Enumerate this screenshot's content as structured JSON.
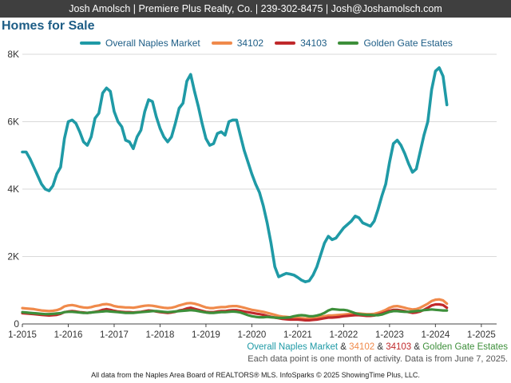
{
  "header": {
    "contact": "Josh Amolsch | Premiere Plus Realty, Co. | 239-302-8475 | Josh@Joshamolsch.com"
  },
  "colors": {
    "header_bg": "#3f3f3f",
    "title": "#1d5d86",
    "overall": "#1f9aa6",
    "z34102": "#f08a4b",
    "z34103": "#c0292b",
    "golden_gate": "#3d8f3a",
    "grid": "#d9d9d9",
    "axis": "#444444"
  },
  "chart_data": {
    "type": "line",
    "title": "Homes for Sale",
    "xlabel": "",
    "ylabel": "",
    "x_start": "2015-01",
    "x_end": "2025-05",
    "xlim": [
      "2015-01",
      "2025-05"
    ],
    "ylim": [
      0,
      8000
    ],
    "yticks": [
      0,
      2000,
      4000,
      6000,
      8000
    ],
    "ytick_labels": [
      "0",
      "2K",
      "4K",
      "6K",
      "8K"
    ],
    "xtick_labels": [
      "1-2015",
      "1-2016",
      "1-2017",
      "1-2018",
      "1-2019",
      "1-2020",
      "1-2021",
      "1-2022",
      "1-2023",
      "1-2024",
      "1-2025"
    ],
    "grid": "horizontal",
    "legend": "top",
    "series": [
      {
        "name": "Overall Naples Market",
        "color_key": "overall",
        "values": [
          5100,
          5100,
          4900,
          4650,
          4400,
          4150,
          4000,
          3950,
          4100,
          4450,
          4650,
          5500,
          6000,
          6050,
          5950,
          5700,
          5400,
          5300,
          5550,
          6100,
          6250,
          6850,
          7000,
          6900,
          6300,
          6000,
          5850,
          5450,
          5400,
          5200,
          5550,
          5750,
          6300,
          6650,
          6600,
          6150,
          5800,
          5550,
          5400,
          5550,
          5950,
          6400,
          6550,
          7200,
          7400,
          6900,
          6450,
          5950,
          5500,
          5300,
          5350,
          5650,
          5700,
          5600,
          6000,
          6050,
          6050,
          5600,
          5150,
          4800,
          4450,
          4150,
          3900,
          3500,
          3000,
          2400,
          1700,
          1400,
          1450,
          1500,
          1480,
          1450,
          1380,
          1300,
          1250,
          1280,
          1450,
          1700,
          2050,
          2400,
          2600,
          2500,
          2550,
          2700,
          2850,
          2950,
          3050,
          3200,
          3150,
          3000,
          2950,
          2900,
          3050,
          3400,
          3800,
          4150,
          4800,
          5350,
          5450,
          5300,
          5050,
          4750,
          4500,
          4600,
          5100,
          5600,
          6000,
          6950,
          7500,
          7600,
          7350,
          6500
        ]
      },
      {
        "name": "34102",
        "color_key": "z34102",
        "values": [
          470,
          460,
          450,
          440,
          420,
          400,
          390,
          380,
          390,
          410,
          450,
          520,
          550,
          560,
          540,
          510,
          490,
          480,
          500,
          530,
          550,
          580,
          590,
          570,
          530,
          510,
          500,
          490,
          490,
          480,
          500,
          520,
          540,
          550,
          540,
          520,
          500,
          480,
          470,
          480,
          510,
          550,
          580,
          610,
          620,
          600,
          570,
          530,
          490,
          470,
          470,
          490,
          500,
          500,
          520,
          530,
          530,
          510,
          480,
          450,
          420,
          400,
          380,
          360,
          330,
          300,
          270,
          240,
          220,
          210,
          200,
          190,
          180,
          170,
          160,
          160,
          170,
          190,
          210,
          230,
          250,
          250,
          260,
          270,
          280,
          290,
          300,
          310,
          310,
          300,
          290,
          290,
          300,
          330,
          370,
          420,
          480,
          520,
          530,
          510,
          480,
          450,
          430,
          440,
          480,
          540,
          600,
          680,
          720,
          730,
          700,
          600
        ]
      },
      {
        "name": "34103",
        "color_key": "z34103",
        "values": [
          320,
          310,
          300,
          290,
          280,
          270,
          260,
          250,
          260,
          270,
          300,
          350,
          370,
          380,
          370,
          350,
          340,
          330,
          340,
          360,
          380,
          420,
          440,
          420,
          390,
          370,
          360,
          350,
          350,
          340,
          350,
          360,
          380,
          400,
          390,
          370,
          350,
          340,
          330,
          340,
          360,
          400,
          420,
          460,
          480,
          450,
          420,
          390,
          360,
          350,
          350,
          370,
          380,
          380,
          400,
          410,
          410,
          390,
          370,
          350,
          330,
          310,
          290,
          270,
          240,
          210,
          190,
          170,
          150,
          140,
          130,
          130,
          130,
          120,
          110,
          110,
          120,
          130,
          150,
          170,
          190,
          190,
          200,
          210,
          230,
          240,
          250,
          260,
          260,
          250,
          240,
          240,
          250,
          280,
          310,
          350,
          390,
          420,
          420,
          400,
          380,
          350,
          330,
          340,
          370,
          420,
          480,
          550,
          580,
          580,
          560,
          480
        ]
      },
      {
        "name": "Golden Gate Estates",
        "color_key": "golden_gate",
        "values": [
          350,
          340,
          330,
          320,
          310,
          300,
          290,
          290,
          300,
          310,
          320,
          350,
          360,
          360,
          350,
          340,
          330,
          330,
          340,
          350,
          360,
          370,
          380,
          370,
          360,
          350,
          340,
          330,
          330,
          330,
          340,
          350,
          360,
          370,
          380,
          380,
          370,
          360,
          350,
          360,
          370,
          380,
          390,
          400,
          410,
          400,
          380,
          360,
          340,
          330,
          330,
          340,
          350,
          350,
          360,
          370,
          360,
          340,
          300,
          260,
          230,
          210,
          200,
          200,
          210,
          200,
          190,
          180,
          180,
          190,
          200,
          230,
          250,
          260,
          250,
          230,
          230,
          250,
          280,
          330,
          400,
          440,
          430,
          420,
          420,
          400,
          360,
          320,
          290,
          280,
          270,
          270,
          260,
          260,
          280,
          320,
          360,
          380,
          380,
          370,
          360,
          360,
          370,
          380,
          390,
          410,
          420,
          430,
          420,
          410,
          400,
          400
        ]
      }
    ]
  },
  "legend_colored": {
    "overall": "Overall Naples Market",
    "z34102": "34102",
    "z34103": "34103",
    "golden_gate": "Golden Gate Estates",
    "sep1": " & ",
    "sep2": " & ",
    "sep3": " & "
  },
  "note": "Each data point is one month of activity. Data is from June 7, 2025.",
  "footer": "All data from the Naples Area Board of REALTORS® MLS. InfoSparks © 2025 ShowingTime Plus, LLC."
}
